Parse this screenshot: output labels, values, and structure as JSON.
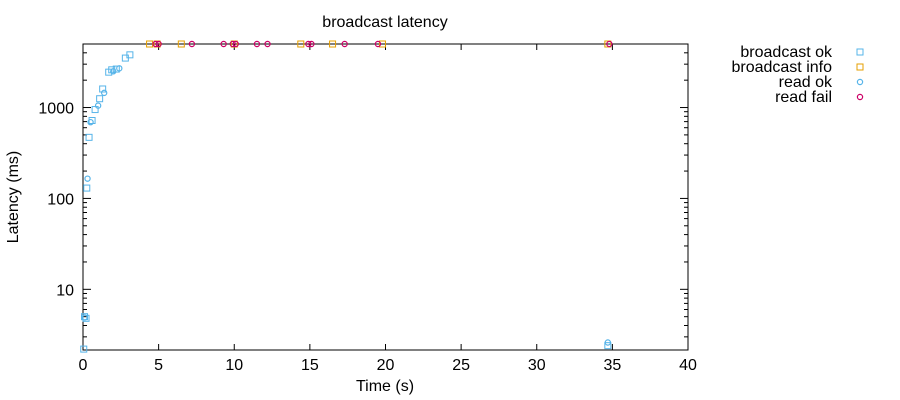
{
  "chart_data": {
    "type": "scatter",
    "title": "broadcast latency",
    "xlabel": "Time (s)",
    "ylabel": "Latency (ms)",
    "xlim": [
      0,
      40
    ],
    "ylim": [
      2.15,
      5000
    ],
    "yscale": "log",
    "grid": false,
    "legend_position": "outside-top-right",
    "x_ticks": [
      0,
      5,
      10,
      15,
      20,
      25,
      30,
      35,
      40
    ],
    "y_ticks": [
      10,
      100,
      1000
    ],
    "x_tick_labels": [
      "0",
      "5",
      "10",
      "15",
      "20",
      "25",
      "30",
      "35",
      "40"
    ],
    "y_tick_labels": [
      "10",
      "100",
      "1000"
    ],
    "series": [
      {
        "name": "broadcast ok",
        "color": "#56b4e9",
        "marker": "square",
        "points": [
          [
            0.05,
            2.2
          ],
          [
            0.1,
            5
          ],
          [
            0.2,
            4.8
          ],
          [
            0.25,
            130
          ],
          [
            0.4,
            470
          ],
          [
            0.6,
            720
          ],
          [
            0.8,
            950
          ],
          [
            1.1,
            1250
          ],
          [
            1.3,
            1600
          ],
          [
            1.7,
            2450
          ],
          [
            1.9,
            2600
          ],
          [
            2.2,
            2650
          ],
          [
            2.8,
            3500
          ],
          [
            3.1,
            3800
          ],
          [
            34.7,
            2.4
          ]
        ]
      },
      {
        "name": "broadcast info",
        "color": "#e69f00",
        "marker": "square",
        "points": [
          [
            4.4,
            5000
          ],
          [
            4.9,
            5000
          ],
          [
            6.5,
            5000
          ],
          [
            10.0,
            5000
          ],
          [
            14.4,
            5000
          ],
          [
            16.5,
            5000
          ],
          [
            19.8,
            5000
          ],
          [
            34.7,
            5000
          ]
        ]
      },
      {
        "name": "read ok",
        "color": "#56b4e9",
        "marker": "circle",
        "points": [
          [
            0.1,
            4.9
          ],
          [
            0.3,
            165
          ],
          [
            0.5,
            690
          ],
          [
            1.0,
            1050
          ],
          [
            1.4,
            1450
          ],
          [
            2.0,
            2500
          ],
          [
            2.4,
            2700
          ],
          [
            34.7,
            2.6
          ]
        ]
      },
      {
        "name": "read fail",
        "color": "#cc0066",
        "marker": "circle",
        "points": [
          [
            4.8,
            5000
          ],
          [
            5.0,
            5000
          ],
          [
            7.2,
            5000
          ],
          [
            9.3,
            5000
          ],
          [
            9.9,
            5000
          ],
          [
            10.1,
            5000
          ],
          [
            11.5,
            5000
          ],
          [
            12.2,
            5000
          ],
          [
            14.9,
            5000
          ],
          [
            15.1,
            5000
          ],
          [
            17.3,
            5000
          ],
          [
            19.5,
            5000
          ],
          [
            34.8,
            5000
          ]
        ]
      }
    ]
  }
}
